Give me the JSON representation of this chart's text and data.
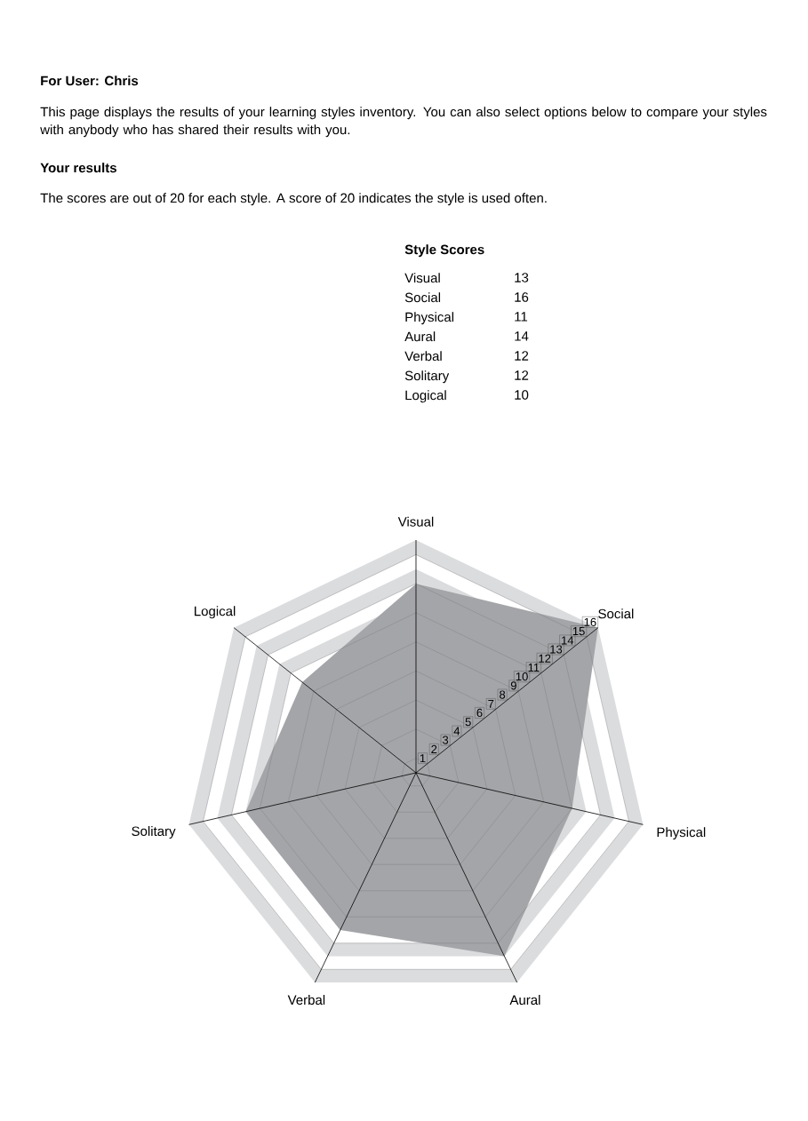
{
  "chart_data": {
    "type": "radar",
    "title": "For User: Chris",
    "subtitle": "This page displays the results of your learning styles inventory. You can also select options below to compare your styles with anybody who has shared their results with you.",
    "annotations": [
      "Your results",
      "The scores are out of 20 for each style. A score of 20 indicates the style is used often.",
      "Style Scores",
      "13",
      "16",
      "11",
      "14",
      "12",
      "12",
      "10"
    ],
    "categories": [
      "Visual",
      "Social",
      "Physical",
      "Aural",
      "Verbal",
      "Solitary",
      "Logical"
    ],
    "values": [
      13,
      16,
      11,
      14,
      12,
      12,
      10
    ],
    "color": "#a4a5a8",
    "ylim": [
      0,
      16
    ],
    "yticks": [
      1,
      2,
      3,
      4,
      5,
      6,
      7,
      8,
      9,
      10,
      11,
      12,
      13,
      14,
      15,
      16
    ],
    "grid": true
  }
}
